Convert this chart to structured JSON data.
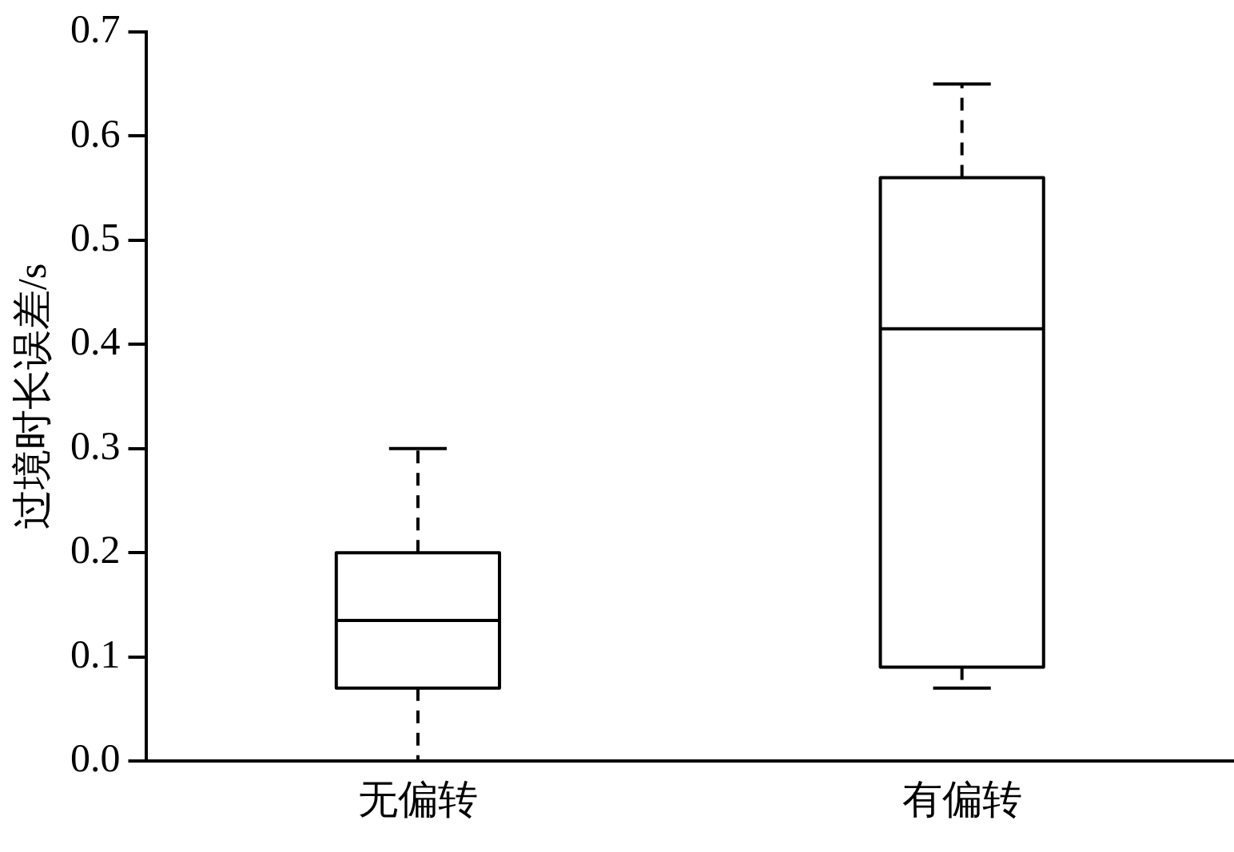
{
  "chart_data": {
    "type": "box",
    "ylabel": "过境时长误差/s",
    "categories": [
      "无偏转",
      "有偏转"
    ],
    "boxes": [
      {
        "low": 0,
        "q1": 0.07,
        "median": 0.135,
        "q3": 0.2,
        "high": 0.3
      },
      {
        "low": 0.07,
        "q1": 0.09,
        "median": 0.415,
        "q3": 0.56,
        "high": 0.65
      }
    ],
    "ylim": [
      0,
      0.7
    ],
    "yticks": [
      {
        "value": 0,
        "label": "0.0"
      },
      0.1,
      0.2,
      0.3,
      0.4,
      0.5,
      0.6,
      0.7
    ],
    "grid": false,
    "legend": false,
    "line_style": "dashed"
  }
}
